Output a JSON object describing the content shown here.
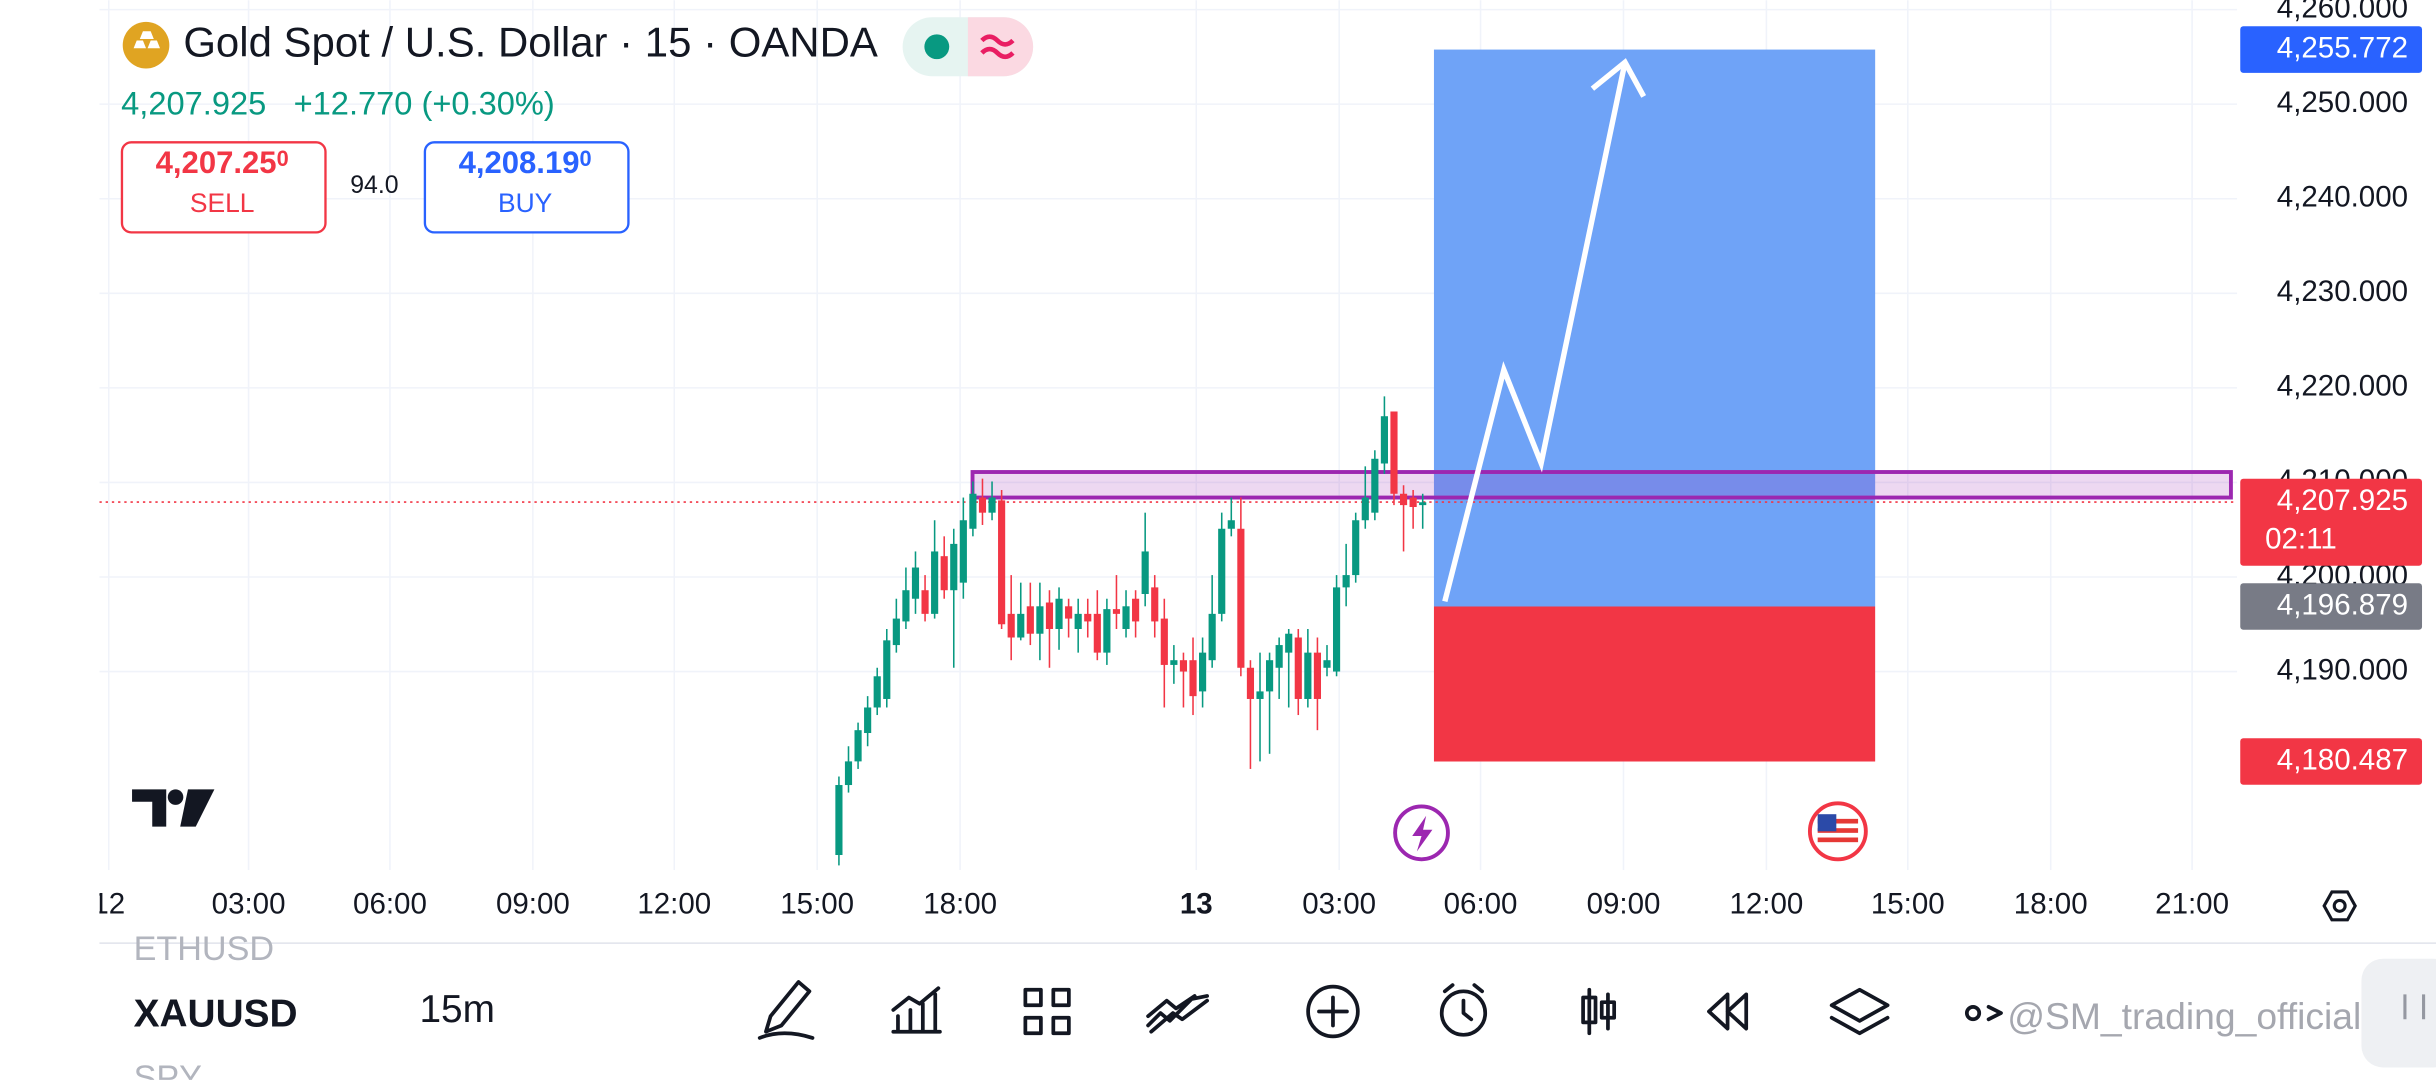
{
  "header": {
    "title": "Gold Spot / U.S. Dollar · 15 · OANDA",
    "price": "4,207.925",
    "change": "+12.770 (+0.30%)",
    "sell": {
      "price": "4,207.25",
      "price_sup": "0",
      "label": "SELL"
    },
    "spread": "94.0",
    "buy": {
      "price": "4,208.19",
      "price_sup": "0",
      "label": "BUY"
    }
  },
  "chart_data": {
    "type": "candlestick",
    "open": [
      4170.6,
      4178.0,
      4180.5,
      4183.5,
      4186.2,
      4187.1,
      4192.8,
      4195.3,
      4197.7,
      4198.6,
      4196.1,
      4202.2,
      4198.6,
      4199.4,
      4205.1,
      4208.4,
      4206.8,
      4208.1,
      4196.1,
      4193.6,
      4196.9,
      4194.0,
      4197.3,
      4194.5,
      4196.9,
      4194.5,
      4196.1,
      4196.1,
      4192.0,
      4196.6,
      4194.5,
      4197.7,
      4198.2,
      4198.9,
      4195.6,
      4190.7,
      4191.2,
      4191.2,
      4187.9,
      4191.2,
      4196.1,
      4205.1,
      4205.1,
      4190.4,
      4187.1,
      4187.9,
      4190.4,
      4192.0,
      4193.6,
      4187.1,
      4192.0,
      4190.4,
      4190.0,
      4198.9,
      4200.2,
      4206.0,
      4206.8,
      4212.0,
      4217.5,
      4208.8,
      4208.4,
      4207.6
    ],
    "high": [
      4178.9,
      4182.1,
      4184.6,
      4187.4,
      4190.4,
      4194.5,
      4197.7,
      4201.0,
      4202.7,
      4200.2,
      4206.0,
      4204.3,
      4205.1,
      4208.4,
      4210.1,
      4210.4,
      4210.1,
      4209.2,
      4200.2,
      4199.4,
      4199.4,
      4199.4,
      4198.6,
      4198.9,
      4197.7,
      4197.7,
      4197.7,
      4198.6,
      4197.7,
      4200.2,
      4198.6,
      4198.6,
      4206.8,
      4200.2,
      4197.7,
      4192.8,
      4192.0,
      4193.6,
      4193.6,
      4200.2,
      4206.8,
      4208.4,
      4208.4,
      4191.2,
      4192.0,
      4192.0,
      4193.6,
      4194.5,
      4194.5,
      4194.5,
      4193.6,
      4192.8,
      4200.2,
      4203.5,
      4206.8,
      4211.7,
      4213.4,
      4219.1,
      4217.5,
      4209.7,
      4209.2,
      4208.8
    ],
    "low": [
      4169.5,
      4177.2,
      4179.7,
      4182.1,
      4185.4,
      4186.2,
      4192.0,
      4194.5,
      4196.1,
      4195.3,
      4195.6,
      4197.7,
      4190.4,
      4197.7,
      4204.3,
      4205.5,
      4206.0,
      4194.5,
      4191.2,
      4193.3,
      4192.8,
      4191.2,
      4190.4,
      4192.3,
      4193.6,
      4192.0,
      4193.6,
      4191.2,
      4190.7,
      4194.5,
      4193.6,
      4193.6,
      4196.9,
      4193.6,
      4186.2,
      4188.7,
      4186.2,
      4185.4,
      4186.2,
      4190.4,
      4195.3,
      4204.3,
      4189.5,
      4179.7,
      4180.5,
      4181.3,
      4187.1,
      4186.2,
      4185.4,
      4186.2,
      4183.8,
      4189.5,
      4189.5,
      4196.9,
      4199.4,
      4205.1,
      4206.0,
      4210.9,
      4207.6,
      4202.7,
      4205.1,
      4205.1
    ],
    "close": [
      4178.0,
      4180.5,
      4183.8,
      4186.2,
      4189.5,
      4193.3,
      4195.6,
      4198.6,
      4201.0,
      4196.1,
      4202.7,
      4198.6,
      4203.5,
      4206.0,
      4208.8,
      4206.8,
      4208.4,
      4195.0,
      4193.6,
      4196.1,
      4194.0,
      4196.9,
      4194.5,
      4197.7,
      4195.6,
      4196.1,
      4195.3,
      4192.0,
      4196.6,
      4196.1,
      4196.9,
      4195.3,
      4202.7,
      4195.3,
      4190.7,
      4191.2,
      4190.0,
      4187.4,
      4192.0,
      4196.1,
      4205.1,
      4206.0,
      4190.4,
      4187.1,
      4187.9,
      4191.2,
      4192.8,
      4194.0,
      4187.1,
      4192.0,
      4187.1,
      4191.2,
      4198.9,
      4200.2,
      4206.0,
      4208.4,
      4212.5,
      4217.0,
      4208.8,
      4207.6,
      4207.4,
      4207.9
    ],
    "up_color": "#089981",
    "down_color": "#f23645",
    "ylim": [
      4169,
      4261
    ],
    "yticks": [
      {
        "value": 4260,
        "label": "4,260.000"
      },
      {
        "value": 4250,
        "label": "4,250.000"
      },
      {
        "value": 4240,
        "label": "4,240.000"
      },
      {
        "value": 4230,
        "label": "4,230.000"
      },
      {
        "value": 4220,
        "label": "4,220.000"
      },
      {
        "value": 4210,
        "label": "4,210.000"
      },
      {
        "value": 4200,
        "label": "4,200.000"
      },
      {
        "value": 4190,
        "label": "4,190.000"
      }
    ],
    "time_labels": [
      "12",
      "03:00",
      "06:00",
      "09:00",
      "12:00",
      "15:00",
      "18:00",
      "13",
      "03:00",
      "06:00",
      "09:00",
      "12:00",
      "15:00",
      "18:00",
      "21:00"
    ],
    "grid": true,
    "zone": {
      "low": 4208.4,
      "high": 4211.1,
      "color": "#9c27b0"
    },
    "position": {
      "target": {
        "value": 4255.772,
        "label": "4,255.772"
      },
      "entry": {
        "value": 4196.879,
        "label": "4,196.879"
      },
      "stop": {
        "value": 4180.487,
        "label": "4,180.487"
      },
      "profit_color": "#6fa3f7",
      "loss_color": "#f23645"
    },
    "last_price": {
      "value": 4207.925,
      "label": "4,207.925",
      "countdown": "02:11"
    }
  },
  "toolbar": {
    "symbols": [
      "ETHUSD",
      "XAUUSD",
      "SPY"
    ],
    "interval": "15m",
    "watermark": "@SM_trading_official"
  }
}
